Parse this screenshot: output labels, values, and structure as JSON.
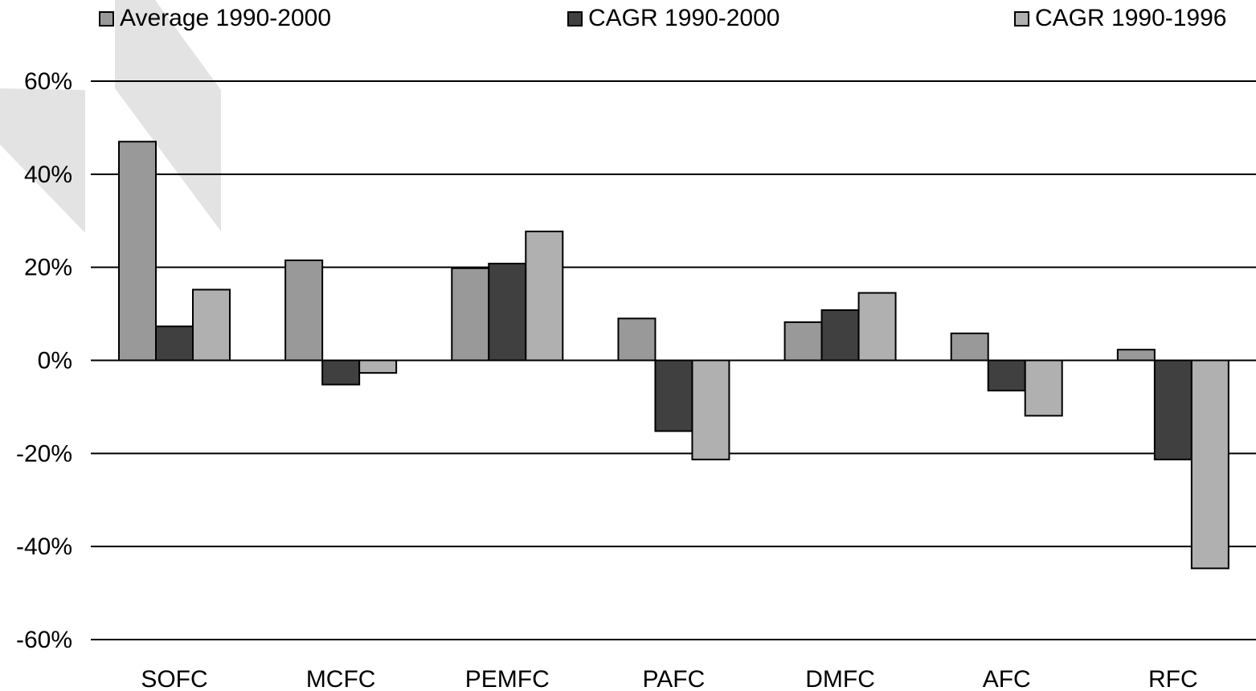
{
  "chart_data": {
    "type": "bar",
    "categories": [
      "SOFC",
      "MCFC",
      "PEMFC",
      "PAFC",
      "DMFC",
      "AFC",
      "RFC"
    ],
    "series": [
      {
        "name": "Average 1990-2000",
        "color": "#999999",
        "values": [
          47,
          21.5,
          19.8,
          9,
          8.2,
          5.8,
          2.3
        ]
      },
      {
        "name": "CAGR 1990-2000",
        "color": "#404040",
        "values": [
          7.3,
          -5.2,
          20.8,
          -15.2,
          10.8,
          -6.5,
          -21.3
        ]
      },
      {
        "name": "CAGR 1990-1996",
        "color": "#b0b0b0",
        "values": [
          15.2,
          -2.7,
          27.7,
          -21.3,
          14.5,
          -11.9,
          -44.7
        ]
      }
    ],
    "yticks": [
      "60%",
      "40%",
      "20%",
      "0%",
      "-20%",
      "-40%",
      "-60%"
    ],
    "ylim": [
      -60,
      60
    ],
    "grid": true,
    "legend_position": "top",
    "title": "",
    "xlabel": "",
    "ylabel": ""
  }
}
